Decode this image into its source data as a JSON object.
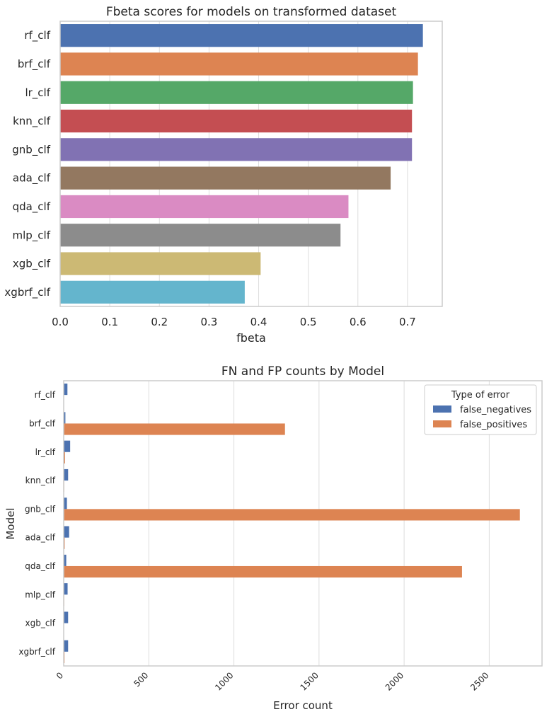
{
  "chart_data": [
    {
      "type": "bar",
      "orientation": "horizontal",
      "title": "Fbeta scores for models on transformed dataset",
      "xlabel": "fbeta",
      "ylabel": "",
      "categories": [
        "rf_clf",
        "brf_clf",
        "lr_clf",
        "knn_clf",
        "gnb_clf",
        "ada_clf",
        "qda_clf",
        "mlp_clf",
        "xgb_clf",
        "xgbrf_clf"
      ],
      "values": [
        0.731,
        0.721,
        0.711,
        0.709,
        0.709,
        0.666,
        0.581,
        0.565,
        0.404,
        0.372
      ],
      "colors": [
        "#4c72b0",
        "#dd8452",
        "#55a868",
        "#c44e52",
        "#8172b3",
        "#937860",
        "#da8bc3",
        "#8c8c8c",
        "#ccb974",
        "#64b5cd"
      ],
      "xlim": [
        0,
        0.77
      ],
      "xticks": [
        0.0,
        0.1,
        0.2,
        0.3,
        0.4,
        0.5,
        0.6,
        0.7
      ],
      "xtick_labels": [
        "0.0",
        "0.1",
        "0.2",
        "0.3",
        "0.4",
        "0.5",
        "0.6",
        "0.7"
      ],
      "grid": true
    },
    {
      "type": "bar",
      "orientation": "horizontal",
      "title": "FN and FP counts by Model",
      "xlabel": "Error count",
      "ylabel": "Model",
      "categories": [
        "rf_clf",
        "brf_clf",
        "lr_clf",
        "knn_clf",
        "gnb_clf",
        "ada_clf",
        "qda_clf",
        "mlp_clf",
        "xgb_clf",
        "xgbrf_clf"
      ],
      "series": [
        {
          "name": "false_negatives",
          "color": "#4c72b0",
          "values": [
            22,
            10,
            38,
            26,
            19,
            32,
            15,
            23,
            26,
            26
          ]
        },
        {
          "name": "false_positives",
          "color": "#dd8452",
          "values": [
            2,
            1300,
            8,
            3,
            2680,
            6,
            2340,
            3,
            2,
            5
          ]
        }
      ],
      "legend_title": "Type of error",
      "legend_position": "top-right",
      "xlim": [
        0,
        2810
      ],
      "xticks": [
        0,
        500,
        1000,
        1500,
        2000,
        2500
      ],
      "xtick_labels": [
        "0",
        "500",
        "1000",
        "1500",
        "2000",
        "2500"
      ],
      "xtick_rotation": -45,
      "grid": true
    }
  ]
}
